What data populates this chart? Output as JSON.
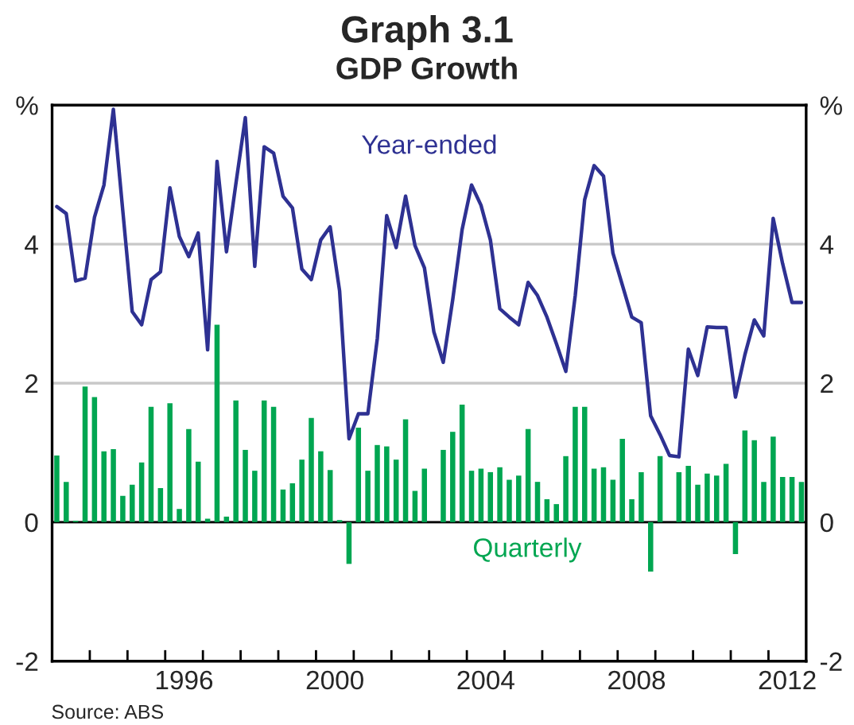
{
  "chart_data": {
    "type": "bar",
    "title": "Graph 3.1",
    "subtitle": "GDP Growth",
    "x": [
      1993.125,
      1993.375,
      1993.625,
      1993.875,
      1994.125,
      1994.375,
      1994.625,
      1994.875,
      1995.125,
      1995.375,
      1995.625,
      1995.875,
      1996.125,
      1996.375,
      1996.625,
      1996.875,
      1997.125,
      1997.375,
      1997.625,
      1997.875,
      1998.125,
      1998.375,
      1998.625,
      1998.875,
      1999.125,
      1999.375,
      1999.625,
      1999.875,
      2000.125,
      2000.375,
      2000.625,
      2000.875,
      2001.125,
      2001.375,
      2001.625,
      2001.875,
      2002.125,
      2002.375,
      2002.625,
      2002.875,
      2003.125,
      2003.375,
      2003.625,
      2003.875,
      2004.125,
      2004.375,
      2004.625,
      2004.875,
      2005.125,
      2005.375,
      2005.625,
      2005.875,
      2006.125,
      2006.375,
      2006.625,
      2006.875,
      2007.125,
      2007.375,
      2007.625,
      2007.875,
      2008.125,
      2008.375,
      2008.625,
      2008.875,
      2009.125,
      2009.375,
      2009.625,
      2009.875,
      2010.125,
      2010.375,
      2010.625,
      2010.875,
      2011.125,
      2011.375,
      2011.625,
      2011.875,
      2012.125,
      2012.375,
      2012.625,
      2012.875
    ],
    "series": [
      {
        "name": "Year-ended",
        "type": "line",
        "color": "#2e3192",
        "values": [
          4.54,
          4.44,
          3.47,
          3.51,
          4.39,
          4.85,
          5.94,
          4.48,
          3.03,
          2.84,
          3.49,
          3.6,
          4.81,
          4.11,
          3.82,
          4.16,
          2.48,
          5.19,
          3.89,
          4.87,
          5.82,
          3.68,
          5.4,
          5.31,
          4.69,
          4.52,
          3.64,
          3.49,
          4.06,
          4.25,
          3.33,
          1.2,
          1.56,
          1.56,
          2.64,
          4.41,
          3.95,
          4.69,
          3.98,
          3.66,
          2.74,
          2.3,
          3.2,
          4.21,
          4.85,
          4.56,
          4.06,
          3.07,
          2.95,
          2.84,
          3.45,
          3.26,
          2.95,
          2.57,
          2.17,
          3.26,
          4.64,
          5.13,
          4.98,
          3.87,
          3.41,
          2.95,
          2.87,
          1.53,
          1.26,
          0.96,
          0.94,
          2.49,
          2.11,
          2.81,
          2.8,
          2.8,
          1.8,
          2.41,
          2.91,
          2.68,
          4.37,
          3.72,
          3.16,
          3.16
        ]
      },
      {
        "name": "Quarterly",
        "color": "#00a651",
        "values": [
          0.96,
          0.58,
          0.02,
          1.95,
          1.8,
          1.02,
          1.05,
          0.38,
          0.54,
          0.86,
          1.66,
          0.49,
          1.71,
          0.19,
          1.34,
          0.87,
          0.05,
          2.84,
          0.08,
          1.75,
          1.04,
          0.74,
          1.75,
          1.66,
          0.47,
          0.56,
          0.9,
          1.5,
          1.02,
          0.75,
          0.03,
          -0.6,
          1.36,
          0.74,
          1.11,
          1.09,
          0.9,
          1.48,
          0.45,
          0.77,
          0,
          1.04,
          1.3,
          1.69,
          0.74,
          0.77,
          0.72,
          0.79,
          0.61,
          0.67,
          1.34,
          0.58,
          0.33,
          0.26,
          0.95,
          1.66,
          1.66,
          0.77,
          0.79,
          0.61,
          1.2,
          0.33,
          0.72,
          -0.71,
          0.95,
          0,
          0.72,
          0.81,
          0.54,
          0.7,
          0.67,
          0.84,
          -0.46,
          1.32,
          1.18,
          0.58,
          1.23,
          0.65,
          0.65,
          0.58
        ]
      }
    ],
    "xlim": [
      1993,
      2013
    ],
    "xticks": [
      {
        "value": 1994,
        "label": null
      },
      {
        "value": 1995,
        "label": null
      },
      {
        "value": 1996,
        "label": null
      },
      {
        "value": 1996.5,
        "label": "1996"
      },
      {
        "value": 1997,
        "label": null
      },
      {
        "value": 1998,
        "label": null
      },
      {
        "value": 1999,
        "label": null
      },
      {
        "value": 2000,
        "label": null
      },
      {
        "value": 2000.5,
        "label": "2000"
      },
      {
        "value": 2001,
        "label": null
      },
      {
        "value": 2002,
        "label": null
      },
      {
        "value": 2003,
        "label": null
      },
      {
        "value": 2004,
        "label": null
      },
      {
        "value": 2004.5,
        "label": "2004"
      },
      {
        "value": 2005,
        "label": null
      },
      {
        "value": 2006,
        "label": null
      },
      {
        "value": 2007,
        "label": null
      },
      {
        "value": 2008,
        "label": null
      },
      {
        "value": 2008.5,
        "label": "2008"
      },
      {
        "value": 2009,
        "label": null
      },
      {
        "value": 2010,
        "label": null
      },
      {
        "value": 2011,
        "label": null
      },
      {
        "value": 2012,
        "label": null
      },
      {
        "value": 2012.5,
        "label": "2012"
      }
    ],
    "ylim": [
      -2,
      6
    ],
    "yticks": [
      -2,
      0,
      2,
      4,
      {
        "value": 6,
        "label": "%"
      }
    ],
    "y2lim": [
      -2,
      6
    ],
    "y2ticks": [
      -2,
      0,
      2,
      4,
      {
        "value": 6,
        "label": "%"
      }
    ],
    "grid": "y",
    "ref_lines": [
      {
        "axis": "y",
        "value": 0,
        "color": "#000000"
      }
    ],
    "legend": false,
    "annotations": [
      "Source: ABS"
    ]
  }
}
